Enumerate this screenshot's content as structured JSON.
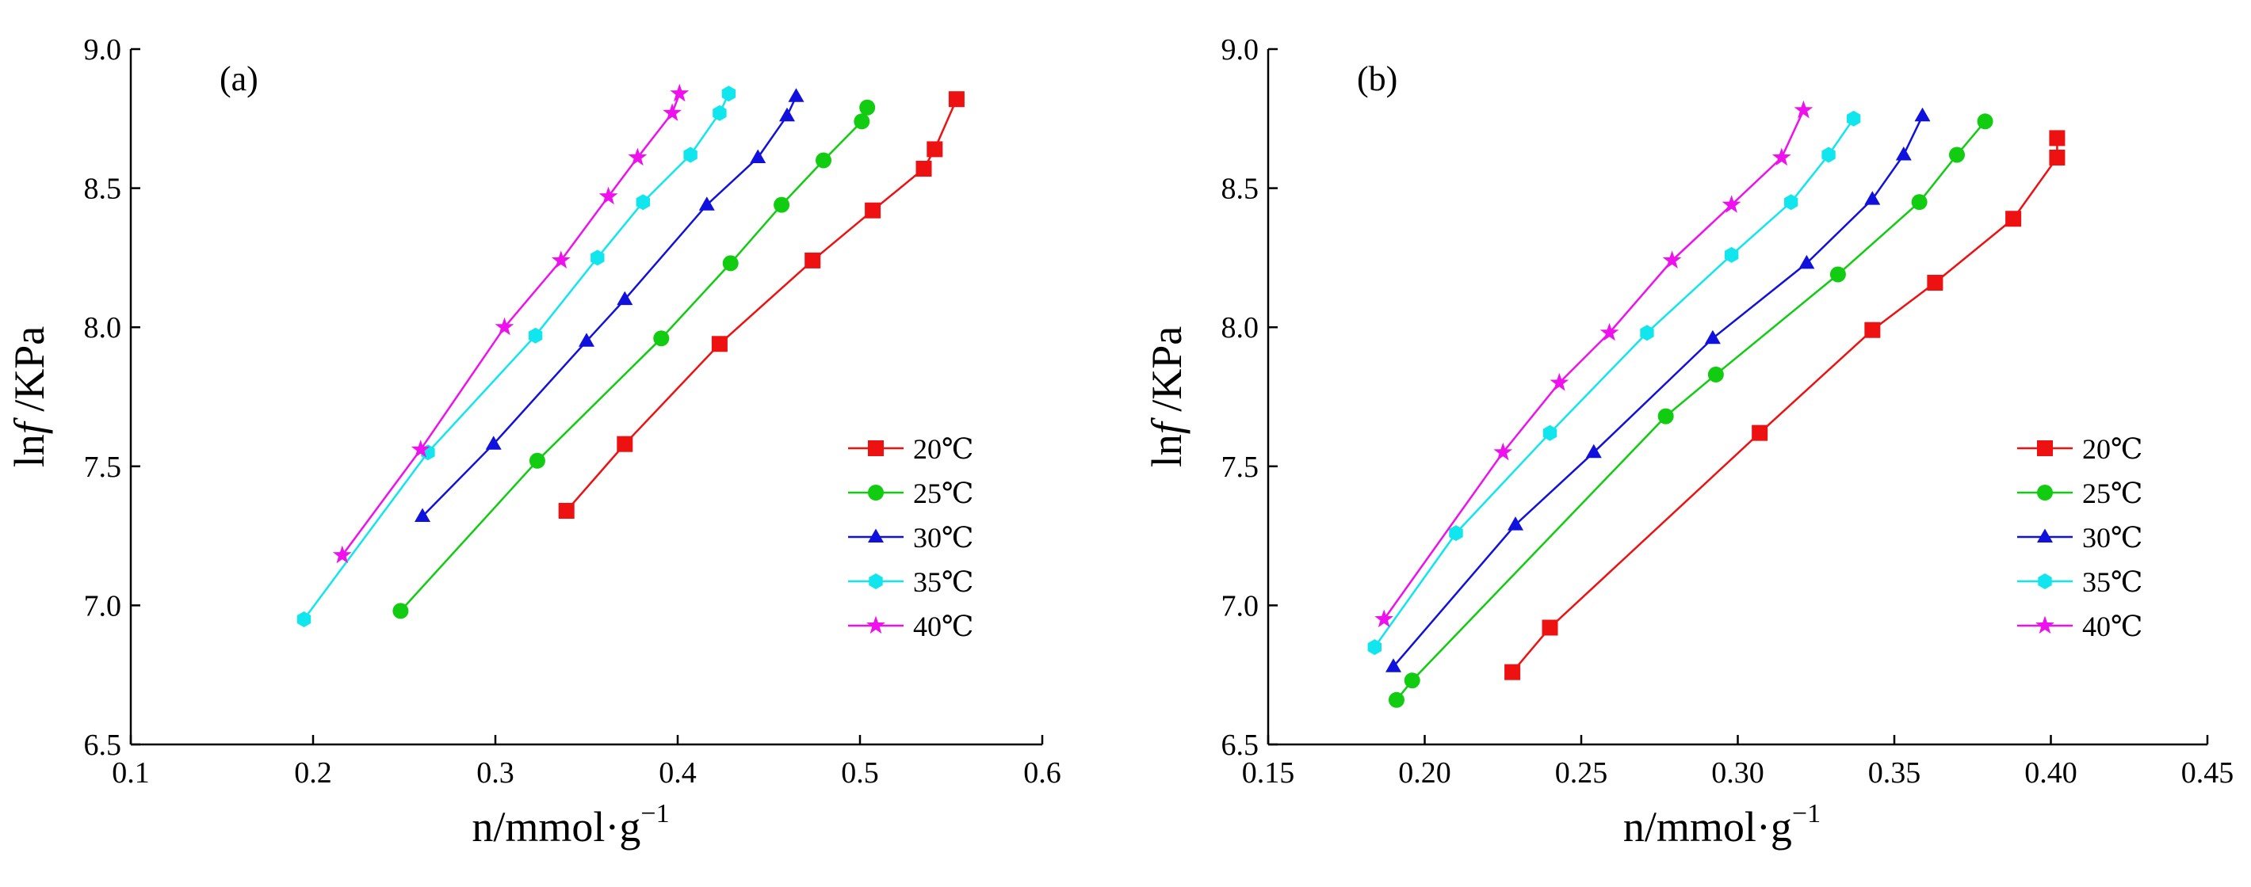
{
  "figure": {
    "background": "#ffffff"
  },
  "chart_data": [
    {
      "type": "line",
      "panel_label": "(a)",
      "xlabel": "n/mmol·g",
      "xlabel_sup": "−1",
      "ylabel_prefix": "ln",
      "ylabel_italic": "f",
      "ylabel_suffix": " /KPa",
      "xlim": [
        0.1,
        0.6
      ],
      "ylim": [
        6.5,
        9.0
      ],
      "xticks": [
        0.1,
        0.2,
        0.3,
        0.4,
        0.5,
        0.6
      ],
      "xtick_labels": [
        "0.1",
        "0.2",
        "0.3",
        "0.4",
        "0.5",
        "0.6"
      ],
      "yticks": [
        6.5,
        7.0,
        7.5,
        8.0,
        8.5,
        9.0
      ],
      "ytick_labels": [
        "6.5",
        "7.0",
        "7.5",
        "8.0",
        "8.5",
        "9.0"
      ],
      "grid": false,
      "legend_position": "lower-right",
      "series": [
        {
          "name": "20℃",
          "color": "#ee1111",
          "marker": "square",
          "x": [
            0.339,
            0.371,
            0.423,
            0.474,
            0.507,
            0.535,
            0.541,
            0.553
          ],
          "y": [
            7.34,
            7.58,
            7.94,
            8.24,
            8.42,
            8.57,
            8.64,
            8.82
          ]
        },
        {
          "name": "25℃",
          "color": "#11cc11",
          "marker": "circle",
          "x": [
            0.248,
            0.323,
            0.391,
            0.429,
            0.457,
            0.48,
            0.501,
            0.504
          ],
          "y": [
            6.98,
            7.52,
            7.96,
            8.23,
            8.44,
            8.6,
            8.74,
            8.79
          ]
        },
        {
          "name": "30℃",
          "color": "#1111dd",
          "marker": "triangle",
          "x": [
            0.26,
            0.299,
            0.35,
            0.371,
            0.416,
            0.444,
            0.46,
            0.465
          ],
          "y": [
            7.32,
            7.58,
            7.95,
            8.1,
            8.44,
            8.61,
            8.76,
            8.83
          ]
        },
        {
          "name": "35℃",
          "color": "#11e5ee",
          "marker": "hexagon",
          "x": [
            0.195,
            0.263,
            0.322,
            0.356,
            0.381,
            0.407,
            0.423,
            0.428
          ],
          "y": [
            6.95,
            7.55,
            7.97,
            8.25,
            8.45,
            8.62,
            8.77,
            8.84
          ]
        },
        {
          "name": "40℃",
          "color": "#ee11ee",
          "marker": "star",
          "x": [
            0.216,
            0.259,
            0.305,
            0.336,
            0.362,
            0.378,
            0.397,
            0.401
          ],
          "y": [
            7.18,
            7.56,
            8.0,
            8.24,
            8.47,
            8.61,
            8.77,
            8.84
          ]
        }
      ]
    },
    {
      "type": "line",
      "panel_label": "(b)",
      "xlabel": "n/mmol·g",
      "xlabel_sup": "−1",
      "ylabel_prefix": "ln",
      "ylabel_italic": "f",
      "ylabel_suffix": " /KPa",
      "xlim": [
        0.15,
        0.45
      ],
      "ylim": [
        6.5,
        9.0
      ],
      "xticks": [
        0.15,
        0.2,
        0.25,
        0.3,
        0.35,
        0.4,
        0.45
      ],
      "xtick_labels": [
        "0.15",
        "0.20",
        "0.25",
        "0.30",
        "0.35",
        "0.40",
        "0.45"
      ],
      "yticks": [
        6.5,
        7.0,
        7.5,
        8.0,
        8.5,
        9.0
      ],
      "ytick_labels": [
        "6.5",
        "7.0",
        "7.5",
        "8.0",
        "8.5",
        "9.0"
      ],
      "grid": false,
      "legend_position": "lower-right",
      "series": [
        {
          "name": "20℃",
          "color": "#ee1111",
          "marker": "square",
          "x": [
            0.228,
            0.24,
            0.307,
            0.343,
            0.363,
            0.388,
            0.402,
            0.402
          ],
          "y": [
            6.76,
            6.92,
            7.62,
            7.99,
            8.16,
            8.39,
            8.61,
            8.68
          ]
        },
        {
          "name": "25℃",
          "color": "#11cc11",
          "marker": "circle",
          "x": [
            0.191,
            0.196,
            0.277,
            0.293,
            0.332,
            0.358,
            0.37,
            0.379
          ],
          "y": [
            6.66,
            6.73,
            7.68,
            7.83,
            8.19,
            8.45,
            8.62,
            8.74
          ]
        },
        {
          "name": "30℃",
          "color": "#1111dd",
          "marker": "triangle",
          "x": [
            0.19,
            0.229,
            0.254,
            0.292,
            0.322,
            0.343,
            0.353,
            0.359
          ],
          "y": [
            6.78,
            7.29,
            7.55,
            7.96,
            8.23,
            8.46,
            8.62,
            8.76
          ]
        },
        {
          "name": "35℃",
          "color": "#11e5ee",
          "marker": "hexagon",
          "x": [
            0.184,
            0.21,
            0.24,
            0.271,
            0.298,
            0.317,
            0.329,
            0.337
          ],
          "y": [
            6.85,
            7.26,
            7.62,
            7.98,
            8.26,
            8.45,
            8.62,
            8.75
          ]
        },
        {
          "name": "40℃",
          "color": "#ee11ee",
          "marker": "star",
          "x": [
            0.187,
            0.225,
            0.243,
            0.259,
            0.279,
            0.298,
            0.314,
            0.321
          ],
          "y": [
            6.95,
            7.55,
            7.8,
            7.98,
            8.24,
            8.44,
            8.61,
            8.78
          ]
        }
      ]
    }
  ]
}
